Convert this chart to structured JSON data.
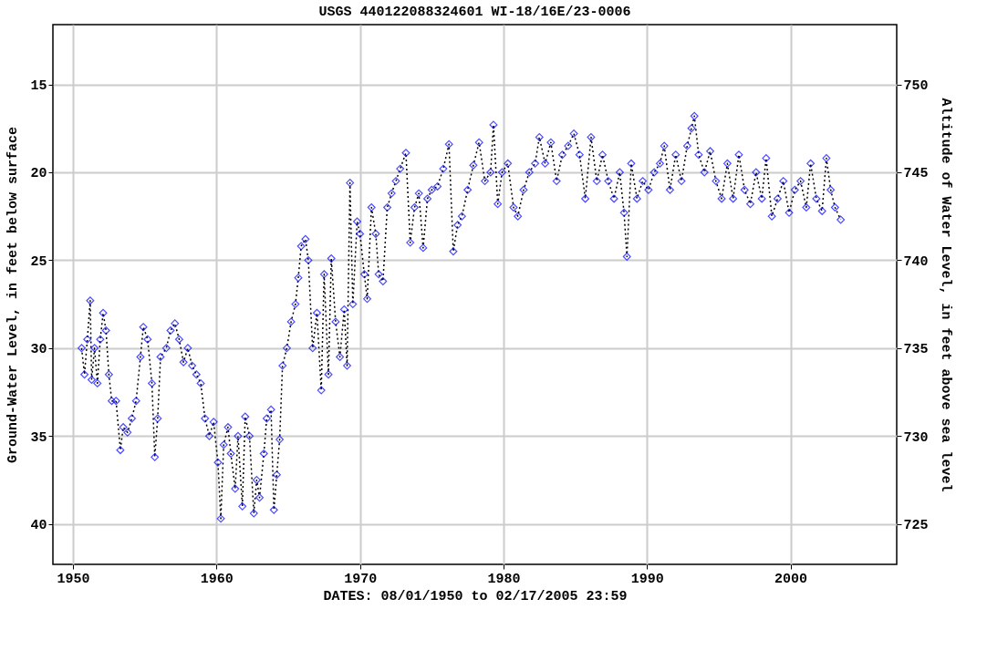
{
  "chart_data": {
    "type": "line",
    "title": "USGS 440122088324601 WI-18/16E/23-0006",
    "xlabel": "DATES: 08/01/1950 to 02/17/2005 23:59",
    "ylabel": "Ground-Water Level, in feet below surface",
    "y2label": "Altitude of Water Level, in feet above sea level",
    "x": [
      1950.6,
      1950.8,
      1951.0,
      1951.2,
      1951.3,
      1951.5,
      1951.7,
      1951.9,
      1952.1,
      1952.3,
      1952.5,
      1952.7,
      1953.0,
      1953.3,
      1953.5,
      1953.8,
      1954.1,
      1954.4,
      1954.7,
      1954.9,
      1955.2,
      1955.5,
      1955.7,
      1955.9,
      1956.1,
      1956.5,
      1956.8,
      1957.1,
      1957.4,
      1957.7,
      1958.0,
      1958.3,
      1958.6,
      1958.9,
      1959.2,
      1959.5,
      1959.8,
      1960.1,
      1960.3,
      1960.5,
      1960.8,
      1961.0,
      1961.3,
      1961.5,
      1961.8,
      1962.0,
      1962.3,
      1962.6,
      1962.8,
      1963.0,
      1963.3,
      1963.5,
      1963.8,
      1964.0,
      1964.2,
      1964.4,
      1964.6,
      1964.9,
      1965.2,
      1965.5,
      1965.7,
      1965.9,
      1966.2,
      1966.4,
      1966.7,
      1967.0,
      1967.3,
      1967.5,
      1967.8,
      1968.0,
      1968.3,
      1968.6,
      1968.9,
      1969.1,
      1969.3,
      1969.5,
      1969.8,
      1970.0,
      1970.3,
      1970.5,
      1970.8,
      1971.1,
      1971.3,
      1971.6,
      1971.9,
      1972.2,
      1972.5,
      1972.8,
      1973.2,
      1973.5,
      1973.8,
      1974.1,
      1974.4,
      1974.7,
      1975.0,
      1975.4,
      1975.8,
      1976.2,
      1976.5,
      1976.8,
      1977.1,
      1977.5,
      1977.9,
      1978.3,
      1978.7,
      1979.1,
      1979.3,
      1979.6,
      1979.9,
      1980.3,
      1980.7,
      1981.0,
      1981.4,
      1981.8,
      1982.2,
      1982.5,
      1982.9,
      1983.3,
      1983.7,
      1984.1,
      1984.5,
      1984.9,
      1985.3,
      1985.7,
      1986.1,
      1986.5,
      1986.9,
      1987.3,
      1987.7,
      1988.1,
      1988.4,
      1988.6,
      1988.9,
      1989.3,
      1989.7,
      1990.1,
      1990.5,
      1990.9,
      1991.2,
      1991.6,
      1992.0,
      1992.4,
      1992.8,
      1993.1,
      1993.3,
      1993.6,
      1994.0,
      1994.4,
      1994.8,
      1995.2,
      1995.6,
      1996.0,
      1996.4,
      1996.8,
      1997.2,
      1997.6,
      1998.0,
      1998.3,
      1998.7,
      1999.1,
      1999.5,
      1999.9,
      2000.3,
      2000.7,
      2001.1,
      2001.4,
      2001.8,
      2002.2,
      2002.5,
      2002.8,
      2003.1,
      2003.5
    ],
    "series": [
      {
        "color": "#0000ff",
        "values": [
          30.0,
          31.5,
          29.5,
          27.3,
          31.8,
          30.0,
          32.0,
          29.5,
          28.0,
          29.0,
          31.5,
          33.0,
          33.0,
          35.8,
          34.5,
          34.8,
          34.0,
          33.0,
          30.5,
          28.8,
          29.5,
          32.0,
          36.2,
          34.0,
          30.5,
          30.0,
          29.0,
          28.6,
          29.5,
          30.8,
          30.0,
          31.0,
          31.5,
          32.0,
          34.0,
          35.0,
          34.2,
          36.5,
          39.7,
          35.5,
          34.5,
          36.0,
          38.0,
          35.0,
          39.0,
          33.9,
          35.0,
          39.4,
          37.5,
          38.5,
          36.0,
          34.0,
          33.5,
          39.2,
          37.2,
          35.2,
          31.0,
          30.0,
          28.5,
          27.5,
          26.0,
          24.2,
          23.8,
          25.0,
          30.0,
          28.0,
          32.4,
          25.8,
          31.5,
          24.9,
          28.5,
          30.5,
          27.8,
          31.0,
          20.6,
          27.5,
          22.8,
          23.5,
          25.8,
          27.2,
          22.0,
          23.5,
          25.8,
          26.2,
          22.0,
          21.2,
          20.5,
          19.8,
          18.9,
          24.0,
          22.0,
          21.2,
          24.3,
          21.5,
          21.0,
          20.8,
          19.8,
          18.4,
          24.5,
          23.0,
          22.5,
          21.0,
          19.6,
          18.3,
          20.5,
          20.0,
          17.3,
          21.8,
          20.0,
          19.5,
          22.0,
          22.5,
          21.0,
          20.0,
          19.5,
          18.0,
          19.5,
          18.3,
          20.5,
          19.0,
          18.5,
          17.8,
          19.0,
          21.5,
          18.0,
          20.5,
          19.0,
          20.5,
          21.5,
          20.0,
          22.3,
          24.8,
          19.5,
          21.5,
          20.5,
          21.0,
          20.0,
          19.5,
          18.5,
          21.0,
          19.0,
          20.5,
          18.5,
          17.5,
          16.8,
          19.0,
          20.0,
          18.8,
          20.5,
          21.5,
          19.5,
          21.5,
          19.0,
          21.0,
          21.8,
          20.0,
          21.5,
          19.2,
          22.5,
          21.5,
          20.5,
          22.3,
          21.0,
          20.5,
          22.0,
          19.5,
          21.5,
          22.2,
          19.2,
          21.0,
          22.0,
          22.7
        ]
      }
    ],
    "marker": "diamond",
    "line_style": "dotted",
    "grid": true,
    "xlim": [
      1948.6,
      2007.4
    ],
    "xticks": [
      1950,
      1960,
      1970,
      1980,
      1990,
      2000
    ],
    "ylim": [
      42.3,
      11.6
    ],
    "yticks": [
      15,
      20,
      25,
      30,
      35,
      40
    ],
    "y2lim": [
      722.7,
      753.4
    ],
    "y2ticks": [
      725,
      730,
      735,
      740,
      745,
      750
    ]
  }
}
